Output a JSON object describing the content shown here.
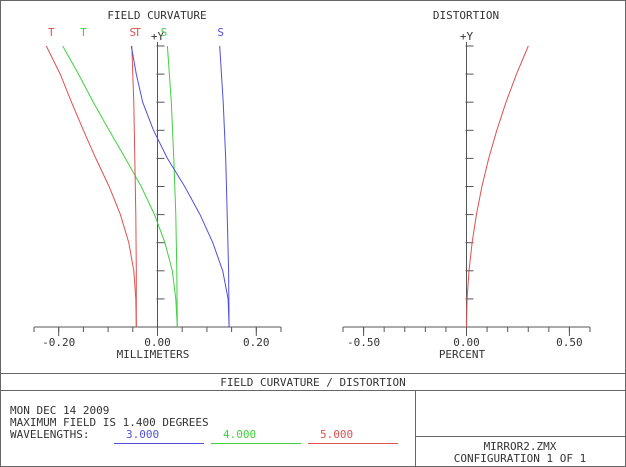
{
  "chart_data": [
    {
      "type": "line",
      "title": "FIELD CURVATURE",
      "y_axis_label": "+Y",
      "xlabel": "MILLIMETERS",
      "xlim": [
        -0.25,
        0.25
      ],
      "ylim": [
        0,
        1
      ],
      "x_tick_labels": [
        "-0.20",
        "0.00",
        "0.20"
      ],
      "x_tick_values": [
        -0.2,
        0.0,
        0.2
      ],
      "minor_tick_step": 0.05,
      "series": [
        {
          "name": "T",
          "color": "#e05050",
          "points": [
            [
              -0.043,
              0
            ],
            [
              -0.044,
              0.1
            ],
            [
              -0.048,
              0.2
            ],
            [
              -0.058,
              0.3
            ],
            [
              -0.075,
              0.4
            ],
            [
              -0.098,
              0.5
            ],
            [
              -0.125,
              0.6
            ],
            [
              -0.15,
              0.7
            ],
            [
              -0.174,
              0.8
            ],
            [
              -0.197,
              0.9
            ],
            [
              -0.225,
              1.0
            ]
          ]
        },
        {
          "name": "T",
          "color": "#40d040",
          "points": [
            [
              0.04,
              0
            ],
            [
              0.037,
              0.1
            ],
            [
              0.03,
              0.2
            ],
            [
              0.015,
              0.3
            ],
            [
              -0.006,
              0.4
            ],
            [
              -0.033,
              0.5
            ],
            [
              -0.065,
              0.6
            ],
            [
              -0.098,
              0.7
            ],
            [
              -0.13,
              0.8
            ],
            [
              -0.16,
              0.9
            ],
            [
              -0.192,
              1.0
            ]
          ]
        },
        {
          "name": "S",
          "color": "#e05050",
          "points": [
            [
              -0.043,
              0
            ],
            [
              -0.043,
              0.2
            ],
            [
              -0.044,
              0.4
            ],
            [
              -0.046,
              0.6
            ],
            [
              -0.048,
              0.8
            ],
            [
              -0.052,
              1.0
            ]
          ]
        },
        {
          "name": "S",
          "color": "#40d040",
          "points": [
            [
              0.04,
              0
            ],
            [
              0.039,
              0.2
            ],
            [
              0.037,
              0.4
            ],
            [
              0.033,
              0.6
            ],
            [
              0.028,
              0.8
            ],
            [
              0.02,
              1.0
            ]
          ]
        },
        {
          "name": "S",
          "color": "#5050e0",
          "points": [
            [
              0.145,
              0
            ],
            [
              0.143,
              0.1
            ],
            [
              0.132,
              0.2
            ],
            [
              0.112,
              0.3
            ],
            [
              0.086,
              0.4
            ],
            [
              0.055,
              0.5
            ],
            [
              0.02,
              0.6
            ],
            [
              -0.008,
              0.7
            ],
            [
              -0.03,
              0.8
            ],
            [
              -0.043,
              0.9
            ],
            [
              -0.053,
              1.0
            ]
          ]
        },
        {
          "name": "S",
          "color": "#5050e0",
          "points": [
            [
              0.145,
              0
            ],
            [
              0.144,
              0.2
            ],
            [
              0.141,
              0.4
            ],
            [
              0.138,
              0.6
            ],
            [
              0.133,
              0.8
            ],
            [
              0.126,
              1.0
            ]
          ]
        }
      ],
      "curve_labels": [
        {
          "text": "T",
          "color": "#e05050",
          "x": -0.215
        },
        {
          "text": "T",
          "color": "#40d040",
          "x": -0.15
        },
        {
          "text": "S",
          "color": "#e05050",
          "x": -0.05
        },
        {
          "text": "T",
          "color": "#e05050",
          "x": -0.04
        },
        {
          "text": "S",
          "color": "#40d040",
          "x": 0.013
        },
        {
          "text": "S",
          "color": "#5050e0",
          "x": 0.128
        }
      ]
    },
    {
      "type": "line",
      "title": "DISTORTION",
      "y_axis_label": "+Y",
      "xlabel": "PERCENT",
      "xlim": [
        -0.6,
        0.6
      ],
      "ylim": [
        0,
        1
      ],
      "x_tick_labels": [
        "-0.50",
        "0.00",
        "0.50"
      ],
      "x_tick_values": [
        -0.5,
        0.0,
        0.5
      ],
      "minor_tick_step": 0.1,
      "series": [
        {
          "name": "",
          "color": "#e05050",
          "points": [
            [
              0.0,
              0
            ],
            [
              0.003,
              0.1
            ],
            [
              0.012,
              0.2
            ],
            [
              0.027,
              0.3
            ],
            [
              0.048,
              0.4
            ],
            [
              0.075,
              0.5
            ],
            [
              0.108,
              0.6
            ],
            [
              0.147,
              0.7
            ],
            [
              0.192,
              0.8
            ],
            [
              0.243,
              0.9
            ],
            [
              0.3,
              1.0
            ]
          ]
        }
      ]
    }
  ],
  "footer": {
    "title": "FIELD CURVATURE / DISTORTION",
    "date": "MON DEC 14 2009",
    "max_field": "MAXIMUM FIELD IS 1.400 DEGREES",
    "wavelengths_label": "WAVELENGTHS:",
    "wavelengths": [
      {
        "value": "3.000",
        "color": "#5050e0"
      },
      {
        "value": "4.000",
        "color": "#40d040"
      },
      {
        "value": "5.000",
        "color": "#e05050"
      }
    ],
    "filename": "MIRROR2.ZMX",
    "configuration": "CONFIGURATION 1 OF 1"
  }
}
